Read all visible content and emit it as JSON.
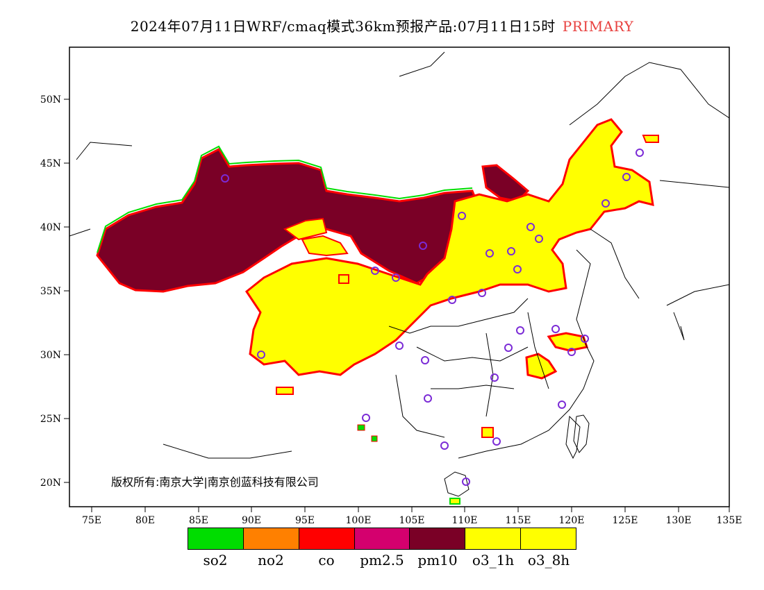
{
  "title": {
    "main": "2024年07月11日WRF/cmaq模式36km预报产品:07月11日15时",
    "tag": "PRIMARY"
  },
  "axes": {
    "lon_ticks": [
      "75E",
      "80E",
      "85E",
      "90E",
      "95E",
      "100E",
      "105E",
      "110E",
      "115E",
      "120E",
      "125E",
      "130E",
      "135E"
    ],
    "lat_ticks": [
      "50N",
      "45N",
      "40N",
      "35N",
      "30N",
      "25N",
      "20N"
    ]
  },
  "copyright": "版权所有:南京大学|南京创蓝科技有限公司",
  "legend": [
    {
      "label": "so2",
      "color": "#00dd00"
    },
    {
      "label": "no2",
      "color": "#ff8000"
    },
    {
      "label": "co",
      "color": "#ff0000"
    },
    {
      "label": "pm2.5",
      "color": "#d4006e"
    },
    {
      "label": "pm10",
      "color": "#7a0026"
    },
    {
      "label": "o3_1h",
      "color": "#ffff00"
    },
    {
      "label": "o3_8h",
      "color": "#ffff00"
    }
  ]
}
